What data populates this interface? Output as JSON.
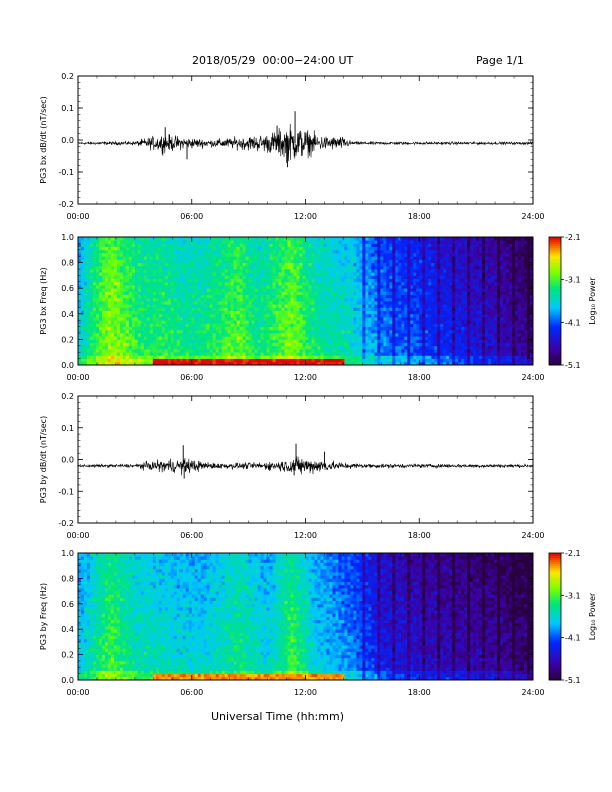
{
  "header": {
    "date_range": "2018/05/29  00:00−24:00 UT",
    "page_label": "Page 1/1"
  },
  "x_axis_title": "Universal Time (hh:mm)",
  "chart_data": [
    {
      "type": "line",
      "panel": "bx_dBdt",
      "ylabel": "PG3 bx dB/dt (nT/sec)",
      "xlim": [
        0,
        24
      ],
      "ylim": [
        -0.2,
        0.2
      ],
      "x_ticks": [
        "00:00",
        "06:00",
        "12:00",
        "18:00",
        "24:00"
      ],
      "y_ticks": [
        "-0.2",
        "-0.1",
        "0.0",
        "0.1",
        "0.2"
      ],
      "baseline": -0.01,
      "envelope": [
        {
          "x": 0,
          "amp": 0.004
        },
        {
          "x": 3,
          "amp": 0.006
        },
        {
          "x": 3.5,
          "amp": 0.015
        },
        {
          "x": 4.5,
          "amp": 0.03
        },
        {
          "x": 5.5,
          "amp": 0.02
        },
        {
          "x": 7,
          "amp": 0.012
        },
        {
          "x": 8.5,
          "amp": 0.02
        },
        {
          "x": 10,
          "amp": 0.03
        },
        {
          "x": 11.2,
          "amp": 0.06
        },
        {
          "x": 11.8,
          "amp": 0.05
        },
        {
          "x": 12.8,
          "amp": 0.025
        },
        {
          "x": 14,
          "amp": 0.02
        },
        {
          "x": 14.5,
          "amp": 0.005
        },
        {
          "x": 24,
          "amp": 0.004
        }
      ],
      "spikes": [
        {
          "x": 11.45,
          "y": 0.09
        },
        {
          "x": 11.05,
          "y": -0.085
        },
        {
          "x": 4.6,
          "y": 0.04
        },
        {
          "x": 5.75,
          "y": -0.06
        },
        {
          "x": 10.5,
          "y": 0.045
        }
      ]
    },
    {
      "type": "heatmap",
      "panel": "bx_spectrogram",
      "ylabel": "PG3 bx Freq (Hz)",
      "xlim": [
        0,
        24
      ],
      "ylim": [
        0,
        1.0
      ],
      "x_ticks": [
        "00:00",
        "06:00",
        "12:00",
        "18:00",
        "24:00"
      ],
      "y_ticks": [
        "0.0",
        "0.2",
        "0.4",
        "0.6",
        "0.8",
        "1.0"
      ],
      "colorbar": {
        "label": "Log₁₀ Power",
        "ticks": [
          "-2.1",
          "-3.1",
          "-4.1",
          "-5.1"
        ],
        "range": [
          -5.1,
          -2.1
        ]
      },
      "time_profile": [
        {
          "x": 0,
          "v": -3.6
        },
        {
          "x": 1.0,
          "v": -3.1
        },
        {
          "x": 1.7,
          "v": -2.8
        },
        {
          "x": 2.5,
          "v": -3.0
        },
        {
          "x": 3.5,
          "v": -3.2
        },
        {
          "x": 4.5,
          "v": -3.2
        },
        {
          "x": 5.5,
          "v": -3.3
        },
        {
          "x": 6.5,
          "v": -3.3
        },
        {
          "x": 8.5,
          "v": -3.0
        },
        {
          "x": 9.5,
          "v": -3.3
        },
        {
          "x": 11.3,
          "v": -2.9
        },
        {
          "x": 12.5,
          "v": -3.3
        },
        {
          "x": 14.5,
          "v": -3.5
        },
        {
          "x": 16,
          "v": -3.9
        },
        {
          "x": 18,
          "v": -4.1
        },
        {
          "x": 20,
          "v": -4.3
        },
        {
          "x": 22,
          "v": -4.5
        },
        {
          "x": 24,
          "v": -4.8
        }
      ],
      "low_freq_band": {
        "fmax": 0.04,
        "v": -2.1,
        "x_range": [
          4,
          14
        ]
      }
    },
    {
      "type": "line",
      "panel": "by_dBdt",
      "ylabel": "PG3 by dB/dt (nT/sec)",
      "xlim": [
        0,
        24
      ],
      "ylim": [
        -0.2,
        0.2
      ],
      "x_ticks": [
        "00:00",
        "06:00",
        "12:00",
        "18:00",
        "24:00"
      ],
      "y_ticks": [
        "-0.2",
        "-0.1",
        "0.0",
        "0.1",
        "0.2"
      ],
      "baseline": -0.02,
      "envelope": [
        {
          "x": 0,
          "amp": 0.004
        },
        {
          "x": 3,
          "amp": 0.006
        },
        {
          "x": 3.5,
          "amp": 0.012
        },
        {
          "x": 4.5,
          "amp": 0.02
        },
        {
          "x": 5.7,
          "amp": 0.025
        },
        {
          "x": 7,
          "amp": 0.01
        },
        {
          "x": 9,
          "amp": 0.01
        },
        {
          "x": 10.5,
          "amp": 0.015
        },
        {
          "x": 11.5,
          "amp": 0.03
        },
        {
          "x": 13,
          "amp": 0.02
        },
        {
          "x": 14,
          "amp": 0.01
        },
        {
          "x": 15,
          "amp": 0.007
        },
        {
          "x": 24,
          "amp": 0.005
        }
      ],
      "spikes": [
        {
          "x": 5.55,
          "y": 0.045
        },
        {
          "x": 5.6,
          "y": -0.06
        },
        {
          "x": 11.5,
          "y": 0.05
        },
        {
          "x": 11.4,
          "y": -0.05
        },
        {
          "x": 13,
          "y": 0.025
        }
      ]
    },
    {
      "type": "heatmap",
      "panel": "by_spectrogram",
      "ylabel": "PG3 by Freq (Hz)",
      "xlim": [
        0,
        24
      ],
      "ylim": [
        0,
        1.0
      ],
      "x_ticks": [
        "00:00",
        "06:00",
        "12:00",
        "18:00",
        "24:00"
      ],
      "y_ticks": [
        "0.0",
        "0.2",
        "0.4",
        "0.6",
        "0.8",
        "1.0"
      ],
      "colorbar": {
        "label": "Log₁₀ Power",
        "ticks": [
          "-2.1",
          "-3.1",
          "-4.1",
          "-5.1"
        ],
        "range": [
          -5.1,
          -2.1
        ]
      },
      "time_profile": [
        {
          "x": 0,
          "v": -3.7
        },
        {
          "x": 1.0,
          "v": -3.3
        },
        {
          "x": 1.7,
          "v": -3.1
        },
        {
          "x": 3.0,
          "v": -3.4
        },
        {
          "x": 4.5,
          "v": -3.5
        },
        {
          "x": 6.5,
          "v": -3.6
        },
        {
          "x": 8.5,
          "v": -3.3
        },
        {
          "x": 10,
          "v": -3.6
        },
        {
          "x": 11.3,
          "v": -3.1
        },
        {
          "x": 12.5,
          "v": -3.6
        },
        {
          "x": 14.5,
          "v": -3.9
        },
        {
          "x": 16,
          "v": -4.3
        },
        {
          "x": 18,
          "v": -4.5
        },
        {
          "x": 20,
          "v": -4.6
        },
        {
          "x": 22,
          "v": -4.7
        },
        {
          "x": 24,
          "v": -4.9
        }
      ],
      "low_freq_band": {
        "fmax": 0.04,
        "v": -2.4,
        "x_range": [
          4,
          14
        ]
      }
    }
  ]
}
